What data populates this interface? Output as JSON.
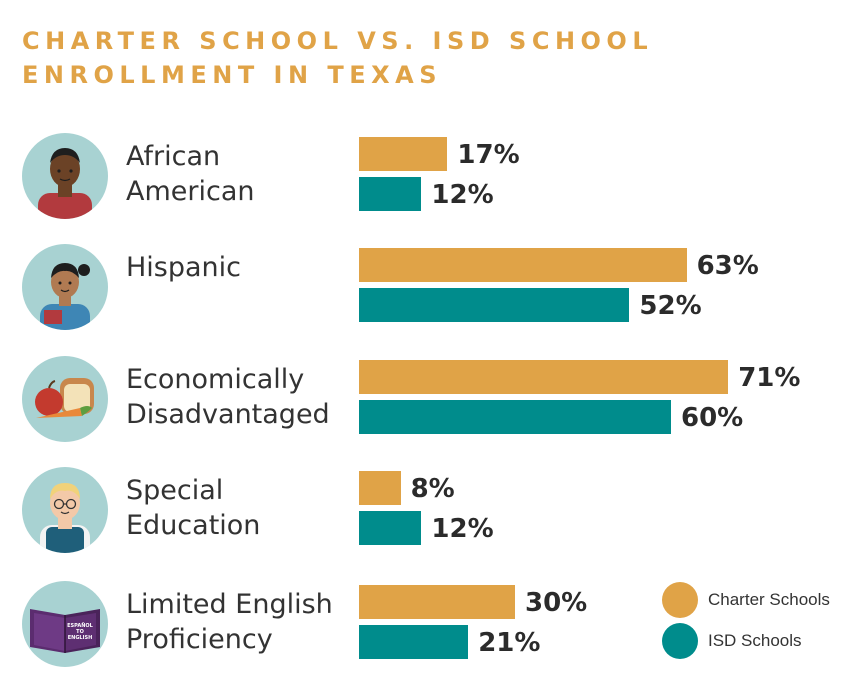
{
  "chart_data": {
    "type": "bar",
    "orientation": "horizontal",
    "title": "CHARTER SCHOOL VS. ISD SCHOOL\nENROLLMENT IN TEXAS",
    "categories": [
      "African\nAmerican",
      "Hispanic",
      "Economically\nDisadvantaged",
      "Special\nEducation",
      "Limited English\nProficiency"
    ],
    "series": [
      {
        "name": "Charter Schools",
        "color": "#E0A347",
        "values": [
          17,
          63,
          71,
          8,
          30
        ],
        "labels": [
          "17%",
          "63%",
          "71%",
          "8%",
          "30%"
        ]
      },
      {
        "name": "ISD Schools",
        "color": "#008C8C",
        "values": [
          12,
          52,
          60,
          12,
          21
        ],
        "labels": [
          "12%",
          "52%",
          "60%",
          "12%",
          "21%"
        ]
      }
    ],
    "xlim": [
      0,
      100
    ],
    "grid": false,
    "legend": "bottom-right"
  },
  "icons": [
    "student-boy-icon",
    "student-girl-icon",
    "food-icon",
    "student-glasses-icon",
    "book-icon"
  ],
  "book_text": "ESPAÑOL\nTO\nENGLISH"
}
